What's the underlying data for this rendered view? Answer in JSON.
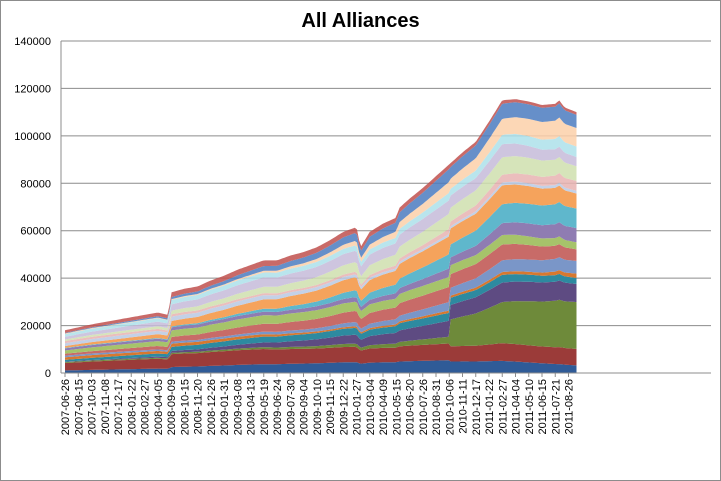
{
  "chart_data": {
    "type": "area",
    "stacked": true,
    "title": "All Alliances",
    "xlabel": "",
    "ylabel": "",
    "ylim": [
      0,
      140000
    ],
    "yticks": [
      0,
      20000,
      40000,
      60000,
      80000,
      100000,
      120000,
      140000
    ],
    "grid": "horizontal",
    "legend": "none",
    "x_tick_labels": [
      "2007-06-26",
      "2007-08-15",
      "2007-10-03",
      "2007-11-08",
      "2007-12-17",
      "2008-01-22",
      "2008-02-27",
      "2008-04-05",
      "2008-09-09",
      "2008-10-15",
      "2008-11-20",
      "2008-12-26",
      "2009-01-31",
      "2009-03-08",
      "2009-04-13",
      "2009-05-19",
      "2009-06-24",
      "2009-07-30",
      "2009-09-04",
      "2009-10-10",
      "2009-11-15",
      "2009-12-22",
      "2010-01-27",
      "2010-03-04",
      "2010-04-09",
      "2010-05-15",
      "2010-06-20",
      "2010-07-26",
      "2010-08-31",
      "2010-10-06",
      "2010-11-11",
      "2010-12-17",
      "2011-01-22",
      "2011-02-27",
      "2011-04-04",
      "2011-05-10",
      "2011-06-15",
      "2011-07-21",
      "2011-08-26"
    ],
    "total_envelope": {
      "x_index": [
        0,
        2,
        4,
        6,
        7,
        7.8,
        8,
        9,
        10,
        11,
        12,
        13,
        14,
        15,
        16,
        17,
        18,
        19,
        20,
        21,
        22,
        22.3,
        23,
        24,
        25,
        25.2,
        26,
        27,
        28,
        29,
        30,
        31,
        32,
        33,
        34,
        35,
        36,
        37,
        37.3,
        37.7,
        38.6
      ],
      "y": [
        18000,
        20500,
        22500,
        24500,
        25500,
        24500,
        34000,
        35500,
        36500,
        39000,
        41000,
        43500,
        45500,
        47500,
        47500,
        49500,
        51000,
        53000,
        56000,
        59500,
        61500,
        53000,
        59500,
        63000,
        65500,
        69500,
        73500,
        78000,
        83000,
        88000,
        93000,
        97500,
        106000,
        115000,
        115500,
        114500,
        113000,
        113500,
        115000,
        112000,
        110000
      ]
    },
    "series_colors": [
      "#2f5b97",
      "#9b3b39",
      "#6e8a3a",
      "#5e4b82",
      "#2d8aa0",
      "#d7782f",
      "#7a96c8",
      "#c86b68",
      "#a6c36a",
      "#8f7cb2",
      "#5fb7cc",
      "#f5a35c",
      "#b9c9e3",
      "#e8b3b1",
      "#cfdfae",
      "#c6bbd9",
      "#ade0ea",
      "#fcd0a9",
      "#4b7bbf",
      "#c0504d"
    ]
  }
}
